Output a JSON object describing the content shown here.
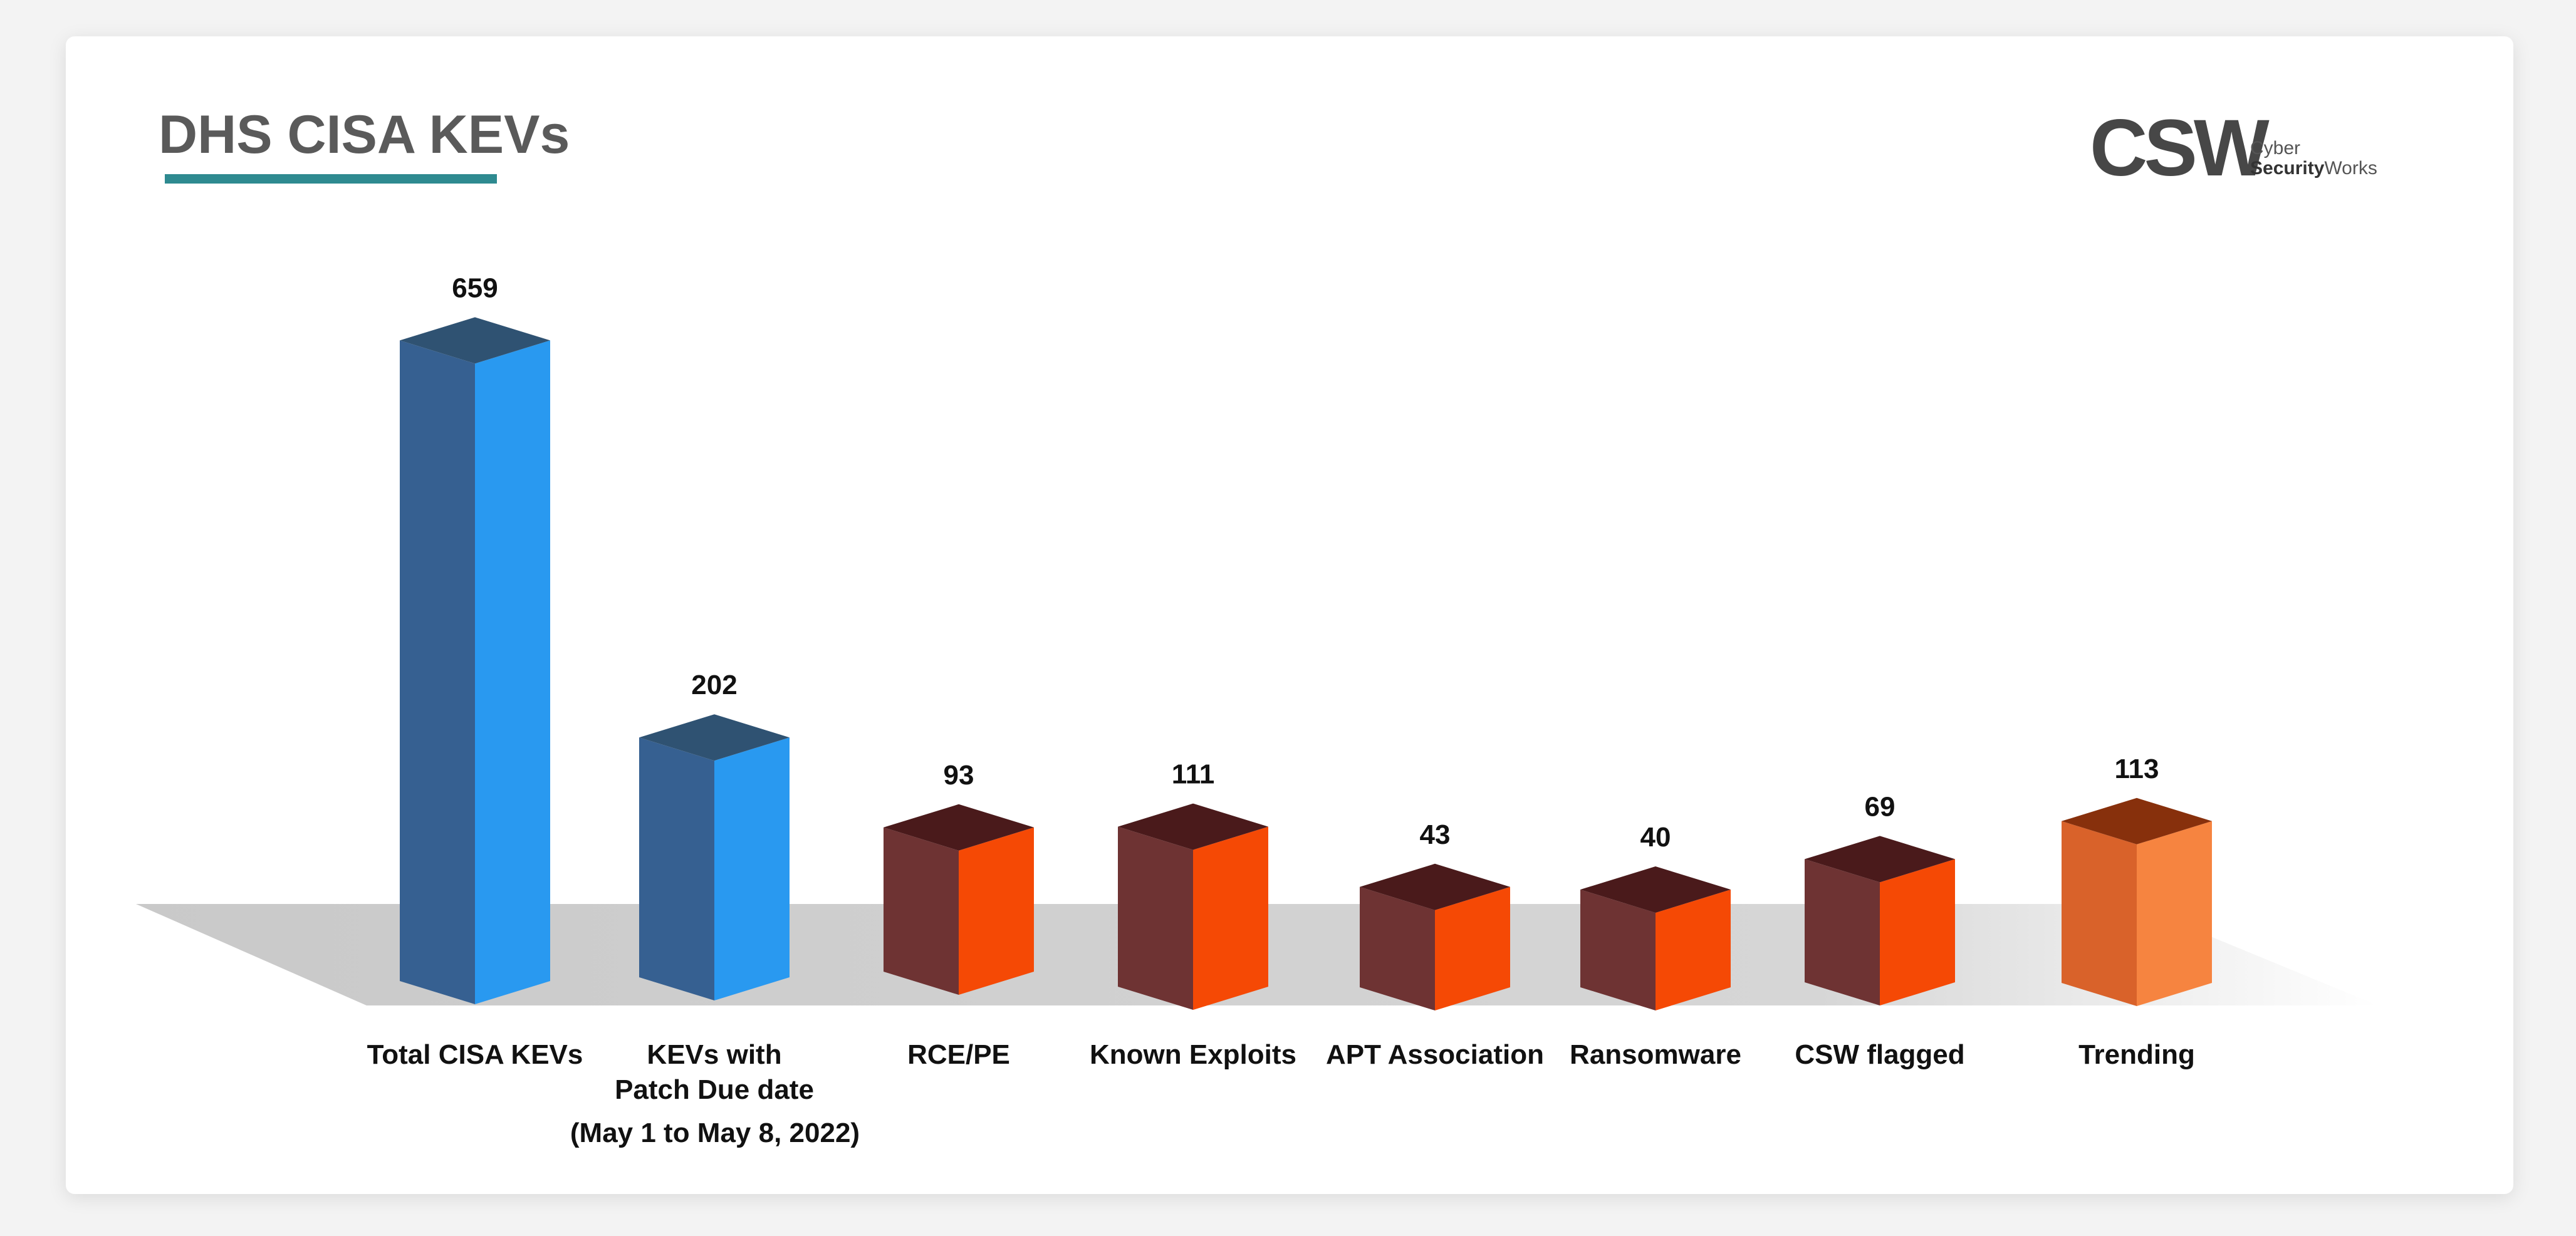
{
  "logo": {
    "mark": "CSW",
    "line1": "Cyber",
    "line2_bold": "Security",
    "line2_rest": "Works"
  },
  "colors": {
    "blue_front": "#2999F0",
    "blue_side": "#366091",
    "blue_top": "#2F5272",
    "red_front": "#F54905",
    "red_side": "#6E3333",
    "red_top": "#4A1A1B",
    "orange_front": "#F68440",
    "orange_side": "#D9622A",
    "orange_top": "#87300C",
    "title": "#5A5A5A",
    "underline": "#2E8A90"
  },
  "chart_data": {
    "type": "bar",
    "title": "DHS CISA KEVs",
    "categories": [
      "Total CISA KEVs",
      "KEVs with Patch Due date",
      "RCE/PE",
      "Known Exploits",
      "APT Association",
      "Ransomware",
      "CSW flagged",
      "Trending"
    ],
    "category_lines": [
      [
        "Total CISA KEVs"
      ],
      [
        "KEVs with",
        "Patch Due date"
      ],
      [
        "RCE/PE"
      ],
      [
        "Known Exploits"
      ],
      [
        "APT Association"
      ],
      [
        "Ransomware"
      ],
      [
        "CSW flagged"
      ],
      [
        "Trending"
      ]
    ],
    "values": [
      659,
      202,
      93,
      111,
      43,
      40,
      69,
      113
    ],
    "bar_colors": [
      "blue",
      "blue",
      "red",
      "red",
      "red",
      "red",
      "red",
      "orange"
    ],
    "annotation": "(May 1 to May 8, 2022)",
    "xlabel": "",
    "ylabel": "",
    "grid": false,
    "legend": "none"
  }
}
